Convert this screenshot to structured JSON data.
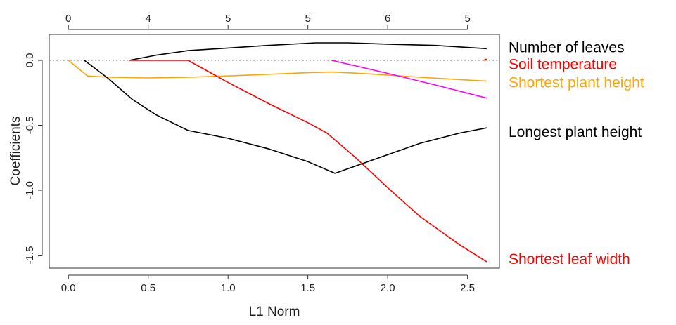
{
  "chart_data": {
    "type": "line",
    "title": "",
    "xlabel": "L1 Norm",
    "ylabel": "Coefficients",
    "xlim": [
      -0.12,
      2.7
    ],
    "ylim": [
      -1.6,
      0.2
    ],
    "x_ticks": [
      "0.0",
      "0.5",
      "1.0",
      "1.5",
      "2.0",
      "2.5"
    ],
    "y_ticks": [
      "0.0",
      "-0.5",
      "-1.0",
      "-1.5"
    ],
    "top_axis": {
      "positions": [
        0.0,
        0.5,
        1.0,
        1.5,
        2.0,
        2.5
      ],
      "labels": [
        "0",
        "4",
        "5",
        "5",
        "6",
        "5"
      ]
    },
    "zero_line": {
      "y": 0,
      "style": "dotted",
      "color": "#999999"
    },
    "series": [
      {
        "name": "Number of leaves",
        "color": "#000000",
        "points": [
          [
            0.38,
            0
          ],
          [
            0.55,
            0.04
          ],
          [
            0.75,
            0.075
          ],
          [
            1.0,
            0.095
          ],
          [
            1.25,
            0.115
          ],
          [
            1.55,
            0.135
          ],
          [
            1.75,
            0.135
          ],
          [
            2.0,
            0.125
          ],
          [
            2.3,
            0.115
          ],
          [
            2.62,
            0.09
          ]
        ]
      },
      {
        "name": "Soil temperature",
        "color": "#ff0000",
        "points": [
          [
            2.6,
            0
          ],
          [
            2.62,
            0.01
          ]
        ]
      },
      {
        "name": "Shortest plant height",
        "color": "#ffa500",
        "points": [
          [
            0.0,
            0
          ],
          [
            0.12,
            -0.12
          ],
          [
            0.25,
            -0.13
          ],
          [
            0.5,
            -0.135
          ],
          [
            0.75,
            -0.13
          ],
          [
            1.0,
            -0.12
          ],
          [
            1.3,
            -0.105
          ],
          [
            1.5,
            -0.095
          ],
          [
            1.65,
            -0.09
          ],
          [
            1.9,
            -0.105
          ],
          [
            2.2,
            -0.13
          ],
          [
            2.62,
            -0.16
          ]
        ]
      },
      {
        "name": "Longest plant height",
        "color": "#000000",
        "points": [
          [
            0.1,
            0
          ],
          [
            0.25,
            -0.14
          ],
          [
            0.4,
            -0.3
          ],
          [
            0.55,
            -0.42
          ],
          [
            0.75,
            -0.54
          ],
          [
            1.0,
            -0.6
          ],
          [
            1.25,
            -0.68
          ],
          [
            1.5,
            -0.78
          ],
          [
            1.67,
            -0.87
          ],
          [
            1.9,
            -0.77
          ],
          [
            2.2,
            -0.64
          ],
          [
            2.45,
            -0.56
          ],
          [
            2.62,
            -0.52
          ]
        ]
      },
      {
        "name": "Shortest leaf width",
        "color": "#ff0000",
        "points": [
          [
            0.38,
            0
          ],
          [
            0.75,
            0
          ],
          [
            1.0,
            -0.17
          ],
          [
            1.25,
            -0.33
          ],
          [
            1.5,
            -0.48
          ],
          [
            1.62,
            -0.56
          ],
          [
            1.8,
            -0.75
          ],
          [
            2.0,
            -0.98
          ],
          [
            2.2,
            -1.2
          ],
          [
            2.45,
            -1.42
          ],
          [
            2.62,
            -1.55
          ]
        ]
      },
      {
        "name": "",
        "color": "#ff00ff",
        "points": [
          [
            1.65,
            0
          ],
          [
            2.0,
            -0.1
          ],
          [
            2.3,
            -0.19
          ],
          [
            2.62,
            -0.29
          ]
        ]
      }
    ],
    "legend": {
      "placement": "right",
      "entries": [
        {
          "label": "Number of leaves",
          "color": "#000000",
          "y": 0.1
        },
        {
          "label": "Soil temperature",
          "color": "#ff0000",
          "y": -0.03
        },
        {
          "label": "Shortest plant height",
          "color": "#ffa500",
          "y": -0.17
        },
        {
          "label": "Longest plant height",
          "color": "#000000",
          "y": -0.55
        },
        {
          "label": "Shortest leaf width",
          "color": "#ff0000",
          "y": -1.53
        }
      ]
    }
  }
}
